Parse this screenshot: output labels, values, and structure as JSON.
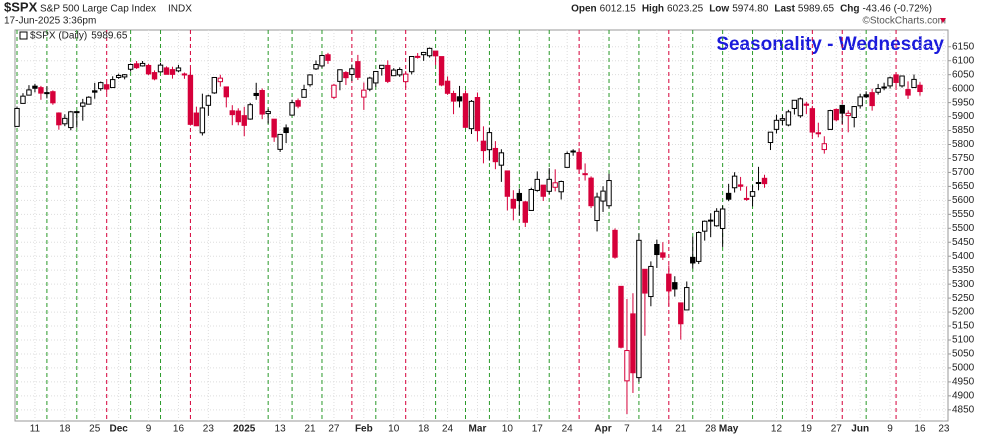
{
  "header": {
    "symbol": "$SPX",
    "name": "S&P 500 Large Cap Index",
    "exchange": "INDX",
    "timestamp": "17-Jun-2025 3:36pm",
    "quote": [
      {
        "label": "Open",
        "value": "6012.15"
      },
      {
        "label": "High",
        "value": "6023.25"
      },
      {
        "label": "Low",
        "value": "5974.80"
      },
      {
        "label": "Last",
        "value": "5989.65"
      },
      {
        "label": "Chg",
        "value": "-43.46 (-0.72%)"
      }
    ],
    "copyright": "©StockCharts.com"
  },
  "chart_data": {
    "type": "candlestick",
    "annotation": "Seasonality - Wednesday",
    "annotation_color": "#1a1adb",
    "ylim": [
      4810,
      6210
    ],
    "yticks": [
      4850,
      4900,
      4950,
      5000,
      5050,
      5100,
      5150,
      5200,
      5250,
      5300,
      5350,
      5400,
      5450,
      5500,
      5550,
      5600,
      5650,
      5700,
      5750,
      5800,
      5850,
      5900,
      5950,
      6000,
      6050,
      6100,
      6150
    ],
    "grid": true,
    "up_color": "#000000",
    "down_color": "#d6003a",
    "categories": [
      null,
      null,
      null,
      "11",
      null,
      null,
      null,
      null,
      "18",
      null,
      null,
      null,
      null,
      "25",
      null,
      null,
      null,
      "Dec",
      null,
      null,
      null,
      null,
      "9",
      null,
      null,
      null,
      null,
      "16",
      null,
      null,
      null,
      null,
      "23",
      null,
      null,
      null,
      null,
      null,
      "2025",
      null,
      null,
      null,
      null,
      null,
      "13",
      null,
      null,
      null,
      null,
      "21",
      null,
      null,
      null,
      "27",
      null,
      null,
      null,
      null,
      "Feb",
      null,
      null,
      null,
      null,
      "10",
      null,
      null,
      null,
      null,
      "18",
      null,
      null,
      null,
      "24",
      null,
      null,
      null,
      null,
      "Mar",
      null,
      null,
      null,
      null,
      "10",
      null,
      null,
      null,
      null,
      "17",
      null,
      null,
      null,
      null,
      "24",
      null,
      null,
      null,
      null,
      null,
      "Apr",
      null,
      null,
      null,
      "7",
      null,
      null,
      null,
      null,
      "14",
      null,
      null,
      null,
      "21",
      null,
      null,
      null,
      null,
      "28",
      null,
      null,
      "May",
      null,
      null,
      null,
      null,
      null,
      null,
      null,
      "12",
      null,
      null,
      null,
      null,
      "19",
      null,
      null,
      null,
      null,
      "27",
      null,
      null,
      null,
      "Jun",
      null,
      null,
      null,
      null,
      "9",
      null,
      null,
      null,
      null,
      "16",
      null,
      null,
      null,
      "23"
    ],
    "wednesday_line_colors": [
      "#2a9a2a",
      null,
      null,
      null,
      null,
      "#2a9a2a",
      null,
      null,
      null,
      null,
      "#2a9a2a",
      null,
      null,
      null,
      null,
      "#d6003a",
      null,
      null,
      null,
      "#2a9a2a",
      null,
      null,
      null,
      null,
      "#2a9a2a",
      null,
      null,
      null,
      null,
      "#d6003a",
      null,
      null,
      null,
      null,
      null,
      null,
      null,
      null,
      null,
      null,
      null,
      null,
      "#2a9a2a",
      null,
      null,
      null,
      "#2a9a2a",
      null,
      null,
      null,
      null,
      "#2a9a2a",
      null,
      null,
      null,
      null,
      "#d6003a",
      null,
      null,
      null,
      "#2a9a2a",
      null,
      null,
      null,
      null,
      "#d6003a",
      null,
      null,
      null,
      null,
      "#2a9a2a",
      null,
      null,
      null,
      null,
      "#2a9a2a",
      null,
      null,
      null,
      "#2a9a2a",
      null,
      null,
      null,
      null,
      "#2a9a2a",
      null,
      null,
      null,
      null,
      "#2a9a2a",
      null,
      null,
      null,
      null,
      "#d6003a",
      null,
      null,
      null,
      null,
      "#2a9a2a",
      null,
      null,
      null,
      null,
      "#2a9a2a",
      null,
      null,
      null,
      null,
      "#d6003a",
      null,
      null,
      null,
      "#2a9a2a",
      null,
      null,
      null,
      null,
      "#2a9a2a",
      null,
      null,
      null,
      null,
      "#2a9a2a",
      null,
      null,
      null,
      null,
      "#2a9a2a",
      null,
      null,
      null,
      null,
      "#d6003a",
      null,
      null,
      null,
      null,
      "#d6003a",
      null,
      null,
      null,
      "#2a9a2a",
      null,
      null,
      null,
      null,
      "#d6003a",
      null,
      null,
      null,
      null,
      null,
      null,
      null
    ],
    "series": [
      {
        "name": "$SPX (Daily)",
        "last": 5989.65,
        "open": [
          5864.8,
          5947.2,
          5976.8,
          6008.9,
          6003.6,
          5985.8,
          5989.1,
          5912.8,
          5874.2,
          5860.6,
          5917.7,
          5937.1,
          5944.4,
          5992.3,
          6000.0,
          6014.1,
          6003.9,
          6040.1,
          6042.0,
          6069.4,
          6089.0,
          6081.4,
          6083.0,
          6057.6,
          6060.2,
          6074.3,
          6068.2,
          6063.8,
          6052.6,
          6047.7,
          5912.7,
          5842.0,
          5940.3,
          5984.7,
          6024.97,
          6006.2,
          5920.7,
          5919.7,
          5903.3,
          5891.1,
          5982.8,
          5993.3,
          5910.7,
          5890.7,
          5782.6,
          5859.6,
          5905.2,
          5957.0,
          5969.0,
          6014.1,
          6070.8,
          6081.4,
          6121.4,
          5969.0,
          6026.0,
          6057.7,
          6050.8,
          6096.8,
          5969.7,
          5998.1,
          6020.5,
          6072.2,
          6083.1,
          6046.4,
          6049.3,
          6025.1,
          6060.6,
          6115.5,
          6121.6,
          6117.8,
          6134.5,
          6114.8,
          6026.7,
          5982.7,
          5970.9,
          5981.9,
          5856.7,
          5968.3,
          5811.98,
          5781.4,
          5785.9,
          5726.0,
          5705.4,
          5603.7,
          5624.8,
          5594.5,
          5563.9,
          5635.6,
          5654.5,
          5632.4,
          5646.9,
          5630.7,
          5718.1,
          5775.9,
          5771.7,
          5695.6,
          5679.7,
          5527.9,
          5597.5,
          5580.8,
          5492.7,
          5292.1,
          4953.8,
          5193.6,
          4965.3,
          5353.2,
          5255.6,
          5441.96,
          5411.99,
          5335.8,
          5305.5,
          5232.9,
          5207.7,
          5395.9,
          5381.4,
          5489.7,
          5529.2,
          5508.9,
          5499.4,
          5625.1,
          5645.2,
          5655.3,
          5605.9,
          5614.6,
          5663.9,
          5679.0,
          5807.1,
          5854.2,
          5886.8,
          5869.9,
          5929.1,
          5902.9,
          5944.7,
          5928.4,
          5841.3,
          5781.9,
          5854.1,
          5925.5,
          5939.9,
          5903.7,
          5896.7,
          5938.6,
          5978.1,
          5985.7,
          5987.1,
          6004.6,
          6009.9,
          6049.4,
          6009.9,
          5996.7,
          6004.0,
          6012.15,
          null,
          null,
          null
        ],
        "high": [
          5936.1,
          5983.8,
          6012.5,
          6017.3,
          6009.9,
          6008.2,
          5993.9,
          5915.3,
          5908.1,
          5920.4,
          5920.7,
          5963.4,
          5972.9,
          6020.8,
          6025.4,
          6020.2,
          6044.2,
          6053.6,
          6052.1,
          6089.8,
          6099.0,
          6099.0,
          6088.5,
          6065.4,
          6092.6,
          6079.7,
          6078.6,
          6085.2,
          6057.7,
          6070.7,
          5935.5,
          5982.1,
          5978.3,
          6040.1,
          6049.75,
          6006.2,
          5940.8,
          5929.7,
          5935.1,
          5949.3,
          6021.0,
          6000.7,
          5927.9,
          5890.7,
          5836.6,
          5871.9,
          5960.6,
          5964.7,
          6014.0,
          6051.5,
          6100.8,
          6118.7,
          6128.2,
          6017.2,
          6069.1,
          6062.8,
          6086.6,
          6120.9,
          6022.1,
          6042.5,
          6062.9,
          6084.0,
          6101.3,
          6073.4,
          6076.3,
          6063.0,
          6116.9,
          6127.5,
          6129.6,
          6147.4,
          6134.5,
          6114.8,
          6043.7,
          5992.7,
          6009.8,
          5993.7,
          5959.4,
          5986.1,
          5865.1,
          5860.6,
          5812.1,
          5783.0,
          5705.4,
          5636.3,
          5642.2,
          5597.8,
          5645.3,
          5703.5,
          5654.5,
          5715.3,
          5711.2,
          5670.8,
          5775.1,
          5783.1,
          5786.95,
          5732.3,
          5685.9,
          5627.6,
          5650.6,
          5695.3,
          5499.5,
          5292.1,
          5246.6,
          5267.5,
          5481.3,
          5353.2,
          5381.5,
          5459.5,
          5450.4,
          5367.2,
          5328.3,
          5232.9,
          5309.6,
          5469.7,
          5489.4,
          5528.1,
          5553.7,
          5571.95,
          5581.8,
          5658.9,
          5700.7,
          5683.9,
          5649.9,
          5654.4,
          5720.1,
          5691.7,
          5844.2,
          5906.6,
          5906.9,
          5924.2,
          5958.6,
          5968.6,
          5953.1,
          5938.4,
          5878.1,
          5829.5,
          5924.3,
          5929.0,
          5943.1,
          5922.1,
          5937.4,
          5981.4,
          5990.5,
          5999.7,
          6016.9,
          6021.3,
          6043.0,
          6059.4,
          6045.4,
          6026.2,
          6050.8,
          6023.25,
          null,
          null,
          null
        ],
        "low": [
          5864.9,
          5947.2,
          5976.8,
          5986.7,
          5960.1,
          5965.0,
          5942.3,
          5853.0,
          5865.9,
          5850.9,
          5860.4,
          5885.3,
          5944.4,
          5963.9,
          5992.3,
          5984.9,
          6003.9,
          6035.3,
          6033.4,
          6061.1,
          6070.7,
          6079.0,
          6048.6,
          6029.9,
          6060.2,
          6051.3,
          6035.8,
          6059.1,
          6035.2,
          5867.8,
          5866.1,
          5832.3,
          5902.6,
          5981.4,
          6007.37,
          5932.95,
          5869.2,
          5868.9,
          5829.5,
          5888.7,
          5960.0,
          5890.7,
          5874.8,
          5809.4,
          5773.3,
          5805.0,
          5905.2,
          5929.7,
          5969.0,
          6006.9,
          6066.8,
          6074.7,
          6088.7,
          5962.9,
          5994.2,
          6012.96,
          6027.5,
          6030.9,
          5923.9,
          5990.9,
          6007.1,
          6046.8,
          6019.96,
          6044.8,
          6042.3,
          6003.0,
          6051.0,
          6107.6,
          6099.5,
          6111.2,
          6084.6,
          6008.6,
          5977.8,
          5908.5,
          5932.7,
          5858.8,
          5837.7,
          5810.9,
          5732.6,
          5742.4,
          5711.6,
          5666.3,
          5564.0,
          5528.4,
          5546.1,
          5504.7,
          5563.9,
          5631.1,
          5597.8,
          5622.2,
          5632.3,
          5603.1,
          5718.1,
          5759.9,
          5694.5,
          5670.9,
          5572.4,
          5488.7,
          5558.5,
          5571.5,
          5390.8,
          5069.9,
          4835.0,
          4910.4,
          4950.0,
          5115.3,
          5220.8,
          5358.0,
          5386.4,
          5220.8,
          5255.6,
          5101.6,
          5207.7,
          5356.2,
          5371.96,
          5455.9,
          5468.6,
          5505.7,
          5433.2,
          5597.4,
          5628.1,
          5634.5,
          5598.6,
          5578.6,
          5635.96,
          5644.98,
          5780.2,
          5839.5,
          5868.5,
          5865.2,
          5907.4,
          5895.7,
          5909.3,
          5830.9,
          5825.8,
          5767.4,
          5854.1,
          5883.0,
          5873.8,
          5843.7,
          5861.4,
          5929.0,
          5966.1,
          5921.2,
          5978.6,
          5994.2,
          6000.3,
          6002.3,
          6003.9,
          5963.2,
          6004.0,
          5974.8,
          null,
          null,
          null
        ],
        "close": [
          5929.0,
          5973.1,
          5995.5,
          6001.4,
          5984.0,
          5985.4,
          5949.2,
          5870.6,
          5893.6,
          5917.0,
          5917.1,
          5948.7,
          5969.3,
          5987.4,
          6021.6,
          5998.7,
          6032.4,
          6047.2,
          6049.9,
          6086.5,
          6075.1,
          6090.3,
          6052.9,
          6034.9,
          6084.2,
          6051.3,
          6051.1,
          6074.1,
          6050.6,
          5872.2,
          5867.1,
          5930.9,
          5974.1,
          6040.0,
          6037.6,
          5970.8,
          5906.9,
          5881.6,
          5868.6,
          5942.5,
          5975.4,
          5909.0,
          5918.3,
          5827.0,
          5836.2,
          5842.9,
          5949.9,
          5937.3,
          5996.7,
          6049.2,
          6086.4,
          6118.7,
          6101.2,
          6012.3,
          6067.7,
          6039.3,
          6071.2,
          6040.5,
          5994.6,
          6037.9,
          6061.5,
          6083.6,
          6026.0,
          6066.4,
          6068.5,
          6052.0,
          6115.1,
          6114.6,
          6129.6,
          6144.2,
          6117.5,
          6013.1,
          5983.3,
          5955.3,
          5956.1,
          5861.6,
          5954.5,
          5849.7,
          5778.2,
          5842.6,
          5738.5,
          5770.2,
          5614.6,
          5572.1,
          5599.3,
          5521.5,
          5638.9,
          5675.1,
          5614.7,
          5675.3,
          5662.9,
          5667.6,
          5767.6,
          5776.7,
          5712.2,
          5693.3,
          5580.9,
          5611.9,
          5633.1,
          5671.0,
          5396.5,
          5074.1,
          5062.3,
          4982.8,
          5456.9,
          5268.1,
          5363.4,
          5406.0,
          5396.6,
          5275.7,
          5282.7,
          5158.2,
          5287.8,
          5375.9,
          5484.8,
          5525.2,
          5528.8,
          5560.8,
          5569.1,
          5604.1,
          5686.7,
          5650.4,
          5606.9,
          5631.3,
          5663.9,
          5659.9,
          5844.2,
          5886.6,
          5892.6,
          5916.9,
          5958.4,
          5963.6,
          5940.5,
          5844.6,
          5842.0,
          5802.8,
          5921.5,
          5888.6,
          5912.2,
          5911.7,
          5935.9,
          5970.4,
          5970.8,
          5939.3,
          6000.4,
          6005.9,
          6038.8,
          6022.2,
          6045.3,
          5977.0,
          6033.1,
          5989.65,
          null,
          null,
          null
        ]
      }
    ]
  }
}
